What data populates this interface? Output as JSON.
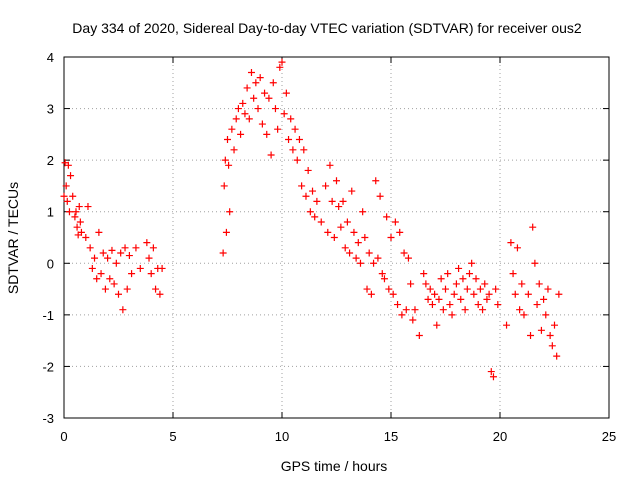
{
  "chart_data": {
    "type": "scatter",
    "title": "Day 334 of 2020, Sidereal Day-to-day VTEC variation (SDTVAR) for receiver ous2",
    "xlabel": "GPS time / hours",
    "ylabel": "SDTVAR / TECUs",
    "xlim": [
      0,
      25
    ],
    "ylim": [
      -3,
      4
    ],
    "xticks": [
      0,
      5,
      10,
      15,
      20,
      25
    ],
    "yticks": [
      -3,
      -2,
      -1,
      0,
      1,
      2,
      3,
      4
    ],
    "grid": true,
    "marker": "+",
    "series_color": "#ff0000",
    "series": [
      {
        "name": "SDTVAR",
        "points": [
          [
            0.0,
            1.3
          ],
          [
            0.05,
            1.95
          ],
          [
            0.1,
            1.5
          ],
          [
            0.15,
            1.2
          ],
          [
            0.2,
            1.9
          ],
          [
            0.25,
            1.0
          ],
          [
            0.3,
            1.7
          ],
          [
            0.4,
            1.3
          ],
          [
            0.5,
            0.9
          ],
          [
            0.55,
            1.0
          ],
          [
            0.6,
            0.7
          ],
          [
            0.65,
            0.55
          ],
          [
            0.7,
            1.1
          ],
          [
            0.75,
            0.8
          ],
          [
            0.8,
            0.6
          ],
          [
            1.0,
            0.5
          ],
          [
            1.1,
            1.1
          ],
          [
            1.2,
            0.3
          ],
          [
            1.3,
            -0.1
          ],
          [
            1.4,
            0.1
          ],
          [
            1.5,
            -0.3
          ],
          [
            1.6,
            0.6
          ],
          [
            1.7,
            -0.2
          ],
          [
            1.8,
            0.2
          ],
          [
            1.9,
            -0.5
          ],
          [
            2.0,
            0.1
          ],
          [
            2.1,
            -0.3
          ],
          [
            2.2,
            0.25
          ],
          [
            2.3,
            -0.4
          ],
          [
            2.4,
            0.0
          ],
          [
            2.5,
            -0.6
          ],
          [
            2.6,
            0.2
          ],
          [
            2.7,
            -0.9
          ],
          [
            2.8,
            0.3
          ],
          [
            2.9,
            -0.5
          ],
          [
            3.0,
            0.15
          ],
          [
            3.1,
            -0.2
          ],
          [
            3.3,
            0.3
          ],
          [
            3.5,
            -0.1
          ],
          [
            3.8,
            0.4
          ],
          [
            3.9,
            0.1
          ],
          [
            4.0,
            -0.2
          ],
          [
            4.1,
            0.3
          ],
          [
            4.2,
            -0.5
          ],
          [
            4.3,
            -0.1
          ],
          [
            4.4,
            -0.6
          ],
          [
            4.5,
            -0.1
          ],
          [
            7.3,
            0.2
          ],
          [
            7.35,
            1.5
          ],
          [
            7.4,
            2.0
          ],
          [
            7.45,
            0.6
          ],
          [
            7.5,
            2.4
          ],
          [
            7.55,
            1.9
          ],
          [
            7.6,
            1.0
          ],
          [
            7.7,
            2.6
          ],
          [
            7.8,
            2.2
          ],
          [
            7.9,
            2.8
          ],
          [
            8.0,
            3.0
          ],
          [
            8.1,
            2.5
          ],
          [
            8.2,
            3.1
          ],
          [
            8.3,
            2.9
          ],
          [
            8.4,
            3.4
          ],
          [
            8.5,
            2.8
          ],
          [
            8.6,
            3.7
          ],
          [
            8.7,
            3.2
          ],
          [
            8.8,
            3.5
          ],
          [
            8.9,
            3.0
          ],
          [
            9.0,
            3.6
          ],
          [
            9.1,
            2.7
          ],
          [
            9.2,
            3.3
          ],
          [
            9.3,
            2.5
          ],
          [
            9.4,
            3.2
          ],
          [
            9.5,
            2.1
          ],
          [
            9.6,
            3.5
          ],
          [
            9.7,
            3.0
          ],
          [
            9.8,
            2.6
          ],
          [
            9.9,
            3.8
          ],
          [
            10.0,
            3.9
          ],
          [
            10.1,
            2.9
          ],
          [
            10.2,
            3.3
          ],
          [
            10.3,
            2.4
          ],
          [
            10.4,
            2.8
          ],
          [
            10.5,
            2.2
          ],
          [
            10.6,
            2.6
          ],
          [
            10.7,
            2.0
          ],
          [
            10.8,
            2.4
          ],
          [
            10.9,
            1.5
          ],
          [
            11.0,
            2.2
          ],
          [
            11.1,
            1.3
          ],
          [
            11.2,
            1.8
          ],
          [
            11.3,
            1.0
          ],
          [
            11.4,
            1.4
          ],
          [
            11.5,
            0.9
          ],
          [
            11.6,
            1.2
          ],
          [
            11.8,
            0.8
          ],
          [
            12.0,
            1.5
          ],
          [
            12.1,
            0.6
          ],
          [
            12.2,
            1.9
          ],
          [
            12.3,
            1.2
          ],
          [
            12.4,
            0.5
          ],
          [
            12.5,
            1.6
          ],
          [
            12.6,
            1.1
          ],
          [
            12.7,
            0.7
          ],
          [
            12.8,
            1.2
          ],
          [
            12.9,
            0.3
          ],
          [
            13.0,
            0.8
          ],
          [
            13.1,
            0.2
          ],
          [
            13.2,
            1.4
          ],
          [
            13.3,
            0.6
          ],
          [
            13.4,
            0.1
          ],
          [
            13.5,
            0.4
          ],
          [
            13.6,
            0.0
          ],
          [
            13.7,
            1.0
          ],
          [
            13.8,
            0.5
          ],
          [
            13.9,
            -0.5
          ],
          [
            14.0,
            0.2
          ],
          [
            14.1,
            -0.6
          ],
          [
            14.2,
            0.0
          ],
          [
            14.3,
            1.6
          ],
          [
            14.4,
            0.1
          ],
          [
            14.5,
            1.3
          ],
          [
            14.6,
            -0.2
          ],
          [
            14.7,
            -0.3
          ],
          [
            14.8,
            0.9
          ],
          [
            14.9,
            -0.5
          ],
          [
            15.0,
            0.5
          ],
          [
            15.1,
            -0.6
          ],
          [
            15.2,
            0.8
          ],
          [
            15.3,
            -0.8
          ],
          [
            15.4,
            0.6
          ],
          [
            15.5,
            -1.0
          ],
          [
            15.6,
            0.2
          ],
          [
            15.7,
            -0.9
          ],
          [
            15.8,
            0.1
          ],
          [
            15.9,
            -0.4
          ],
          [
            16.0,
            -1.1
          ],
          [
            16.1,
            -0.9
          ],
          [
            16.3,
            -1.4
          ],
          [
            16.5,
            -0.2
          ],
          [
            16.6,
            -0.4
          ],
          [
            16.7,
            -0.7
          ],
          [
            16.8,
            -0.5
          ],
          [
            16.9,
            -0.8
          ],
          [
            17.0,
            -0.6
          ],
          [
            17.1,
            -1.2
          ],
          [
            17.2,
            -0.7
          ],
          [
            17.3,
            -0.3
          ],
          [
            17.4,
            -0.9
          ],
          [
            17.5,
            -0.5
          ],
          [
            17.6,
            -0.2
          ],
          [
            17.7,
            -0.8
          ],
          [
            17.8,
            -1.0
          ],
          [
            17.9,
            -0.6
          ],
          [
            18.0,
            -0.4
          ],
          [
            18.1,
            -0.1
          ],
          [
            18.2,
            -0.7
          ],
          [
            18.3,
            -0.3
          ],
          [
            18.4,
            -0.9
          ],
          [
            18.5,
            -0.5
          ],
          [
            18.6,
            -0.2
          ],
          [
            18.7,
            0.0
          ],
          [
            18.8,
            -0.6
          ],
          [
            18.9,
            -0.3
          ],
          [
            19.0,
            -0.8
          ],
          [
            19.1,
            -0.5
          ],
          [
            19.2,
            -0.9
          ],
          [
            19.3,
            -0.4
          ],
          [
            19.4,
            -0.7
          ],
          [
            19.5,
            -0.6
          ],
          [
            19.6,
            -2.1
          ],
          [
            19.7,
            -2.2
          ],
          [
            19.8,
            -0.5
          ],
          [
            19.9,
            -0.8
          ],
          [
            20.3,
            -1.2
          ],
          [
            20.5,
            0.4
          ],
          [
            20.6,
            -0.2
          ],
          [
            20.7,
            -0.6
          ],
          [
            20.8,
            0.3
          ],
          [
            20.9,
            -0.9
          ],
          [
            21.0,
            -0.4
          ],
          [
            21.1,
            -1.0
          ],
          [
            21.3,
            -0.6
          ],
          [
            21.4,
            -1.4
          ],
          [
            21.5,
            0.7
          ],
          [
            21.6,
            0.0
          ],
          [
            21.7,
            -0.8
          ],
          [
            21.8,
            -0.4
          ],
          [
            21.9,
            -1.3
          ],
          [
            22.0,
            -0.7
          ],
          [
            22.1,
            -1.0
          ],
          [
            22.2,
            -0.5
          ],
          [
            22.3,
            -1.4
          ],
          [
            22.4,
            -1.6
          ],
          [
            22.5,
            -1.2
          ],
          [
            22.6,
            -1.8
          ],
          [
            22.7,
            -0.6
          ]
        ]
      }
    ]
  }
}
